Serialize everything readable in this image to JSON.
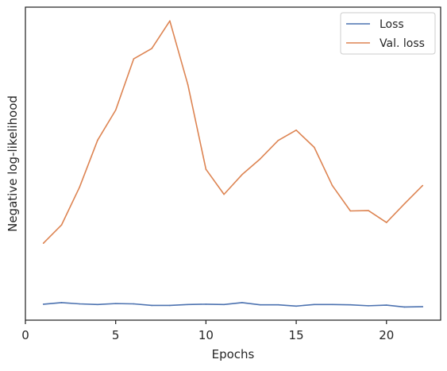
{
  "chart_data": {
    "type": "line",
    "title": "",
    "xlabel": "Epochs",
    "ylabel": "Negative log-likelihood",
    "xlim": [
      0,
      23
    ],
    "ylim": [
      0,
      100
    ],
    "xticks": [
      0,
      5,
      10,
      15,
      20
    ],
    "yticks_labeled": false,
    "grid": false,
    "legend_placement": "top-right",
    "x": [
      1,
      2,
      3,
      4,
      5,
      6,
      7,
      8,
      9,
      10,
      11,
      12,
      13,
      14,
      15,
      16,
      17,
      18,
      19,
      20,
      21,
      22
    ],
    "series": [
      {
        "name": "Loss",
        "color": "#4c72b0",
        "values": [
          5.1,
          5.6,
          5.2,
          5.0,
          5.3,
          5.2,
          4.7,
          4.7,
          5.0,
          5.1,
          5.0,
          5.6,
          4.9,
          4.9,
          4.5,
          5.0,
          5.0,
          4.9,
          4.6,
          4.8,
          4.2,
          4.3
        ]
      },
      {
        "name": "Val. loss",
        "color": "#dd8452",
        "values": [
          24.6,
          30.4,
          42.5,
          57.5,
          67.1,
          83.5,
          86.8,
          95.6,
          75.2,
          48.2,
          40.2,
          46.5,
          51.5,
          57.4,
          60.7,
          55.2,
          43.0,
          34.9,
          35.0,
          31.2,
          37.2,
          43.0
        ]
      }
    ]
  }
}
